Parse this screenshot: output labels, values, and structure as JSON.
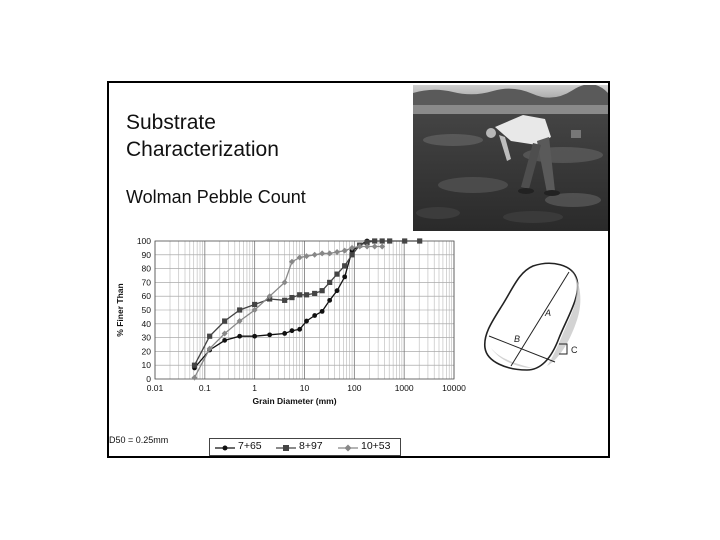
{
  "slide": {
    "title_line1": "Substrate",
    "title_line2": "Characterization",
    "subtitle": "Wolman Pebble Count",
    "d50_note": "D50 = 0.25mm"
  },
  "photo": {
    "icon": "person-sampling-stream-photo"
  },
  "diagram": {
    "icon": "pebble-axes-diagram",
    "labels": {
      "a": "A",
      "b": "B",
      "c": "C"
    }
  },
  "chart_data": {
    "type": "line",
    "xscale": "log",
    "xlim": [
      0.01,
      10000
    ],
    "ylim": [
      0,
      100
    ],
    "xlabel": "Grain Diameter (mm)",
    "ylabel": "% Finer Than",
    "xticks": [
      "0.01",
      "0.1",
      "1",
      "10",
      "100",
      "1000",
      "10000"
    ],
    "yticks": [
      "0",
      "10",
      "20",
      "30",
      "40",
      "50",
      "60",
      "70",
      "80",
      "90",
      "100"
    ],
    "grid": true,
    "legend_position": "bottom",
    "series": [
      {
        "name": "7+65",
        "color": "#111111",
        "marker": "circle",
        "x": [
          0.062,
          0.125,
          0.25,
          0.5,
          1,
          2,
          4,
          5.6,
          8,
          11,
          16,
          22.6,
          32,
          45,
          64,
          90,
          128,
          180,
          256
        ],
        "y": [
          8,
          21,
          28,
          31,
          31,
          32,
          33,
          35,
          36,
          42,
          46,
          49,
          57,
          64,
          74,
          93,
          97,
          100,
          100
        ]
      },
      {
        "name": "8+97",
        "color": "#444444",
        "marker": "square",
        "x": [
          0.062,
          0.125,
          0.25,
          0.5,
          1,
          2,
          4,
          5.6,
          8,
          11,
          16,
          22.6,
          32,
          45,
          64,
          90,
          128,
          180,
          256,
          362,
          512,
          1024,
          2048
        ],
        "y": [
          10,
          31,
          42,
          50,
          54,
          58,
          57,
          59,
          61,
          61,
          62,
          64,
          70,
          76,
          82,
          90,
          97,
          99,
          100,
          100,
          100,
          100,
          100
        ]
      },
      {
        "name": "10+53",
        "color": "#888888",
        "marker": "diamond",
        "x": [
          0.062,
          0.125,
          0.25,
          0.5,
          1,
          2,
          4,
          5.6,
          8,
          11,
          16,
          22.6,
          32,
          45,
          64,
          90,
          128,
          180,
          256,
          362
        ],
        "y": [
          1,
          22,
          33,
          42,
          50,
          60,
          70,
          85,
          88,
          89,
          90,
          91,
          91,
          92,
          93,
          95,
          96,
          96,
          96,
          96
        ]
      }
    ]
  }
}
